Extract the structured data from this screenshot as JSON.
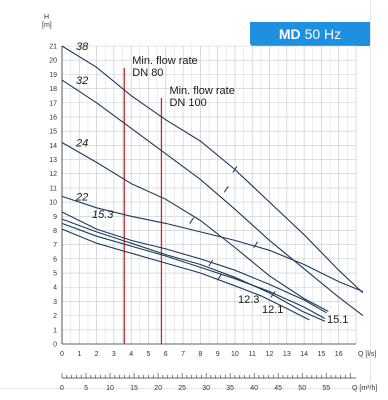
{
  "header": {
    "model": "MD",
    "frequency": "50 Hz",
    "color": "#1f8fe0"
  },
  "chart_data": {
    "type": "line",
    "ylabel": "H",
    "yunit": "[m]",
    "ylim": [
      0,
      21
    ],
    "yticks": [
      "0",
      "1",
      "2",
      "3",
      "4",
      "5",
      "6",
      "7",
      "8",
      "9",
      "10",
      "11",
      "12",
      "13",
      "14",
      "15",
      "16",
      "17",
      "18",
      "19",
      "20",
      "21"
    ],
    "x1_unit": "Q [l/s]",
    "x1lim": [
      0,
      17
    ],
    "x1ticks": [
      "0",
      "1",
      "2",
      "3",
      "4",
      "5",
      "6",
      "7",
      "8",
      "9",
      "10",
      "11",
      "12",
      "13",
      "14",
      "15",
      "16"
    ],
    "x2_unit": "Q [m³/h]",
    "x2ticks": [
      "0",
      "5",
      "10",
      "15",
      "20",
      "25",
      "30",
      "35",
      "40",
      "45",
      "50",
      "55"
    ],
    "grid": true,
    "colors": {
      "curve": "#1a3a5c",
      "minflow": "#c0272d",
      "grid": "#c8ccd0"
    },
    "annotations": [
      {
        "text": "Min. flow rate",
        "sub": "DN 80",
        "q": 3.6
      },
      {
        "text": "Min. flow rate",
        "sub": "DN 100",
        "q": 5.75
      }
    ],
    "series": [
      {
        "name": "38",
        "label_pos": "start",
        "points": [
          [
            0,
            21
          ],
          [
            2,
            19.5
          ],
          [
            4,
            17.5
          ],
          [
            6,
            15.8
          ],
          [
            8,
            14.3
          ],
          [
            10,
            12.3
          ],
          [
            12,
            10
          ],
          [
            14,
            7.7
          ],
          [
            16,
            5.2
          ],
          [
            17.4,
            3.6
          ]
        ]
      },
      {
        "name": "32",
        "label_pos": "start",
        "points": [
          [
            0,
            18.6
          ],
          [
            2,
            17
          ],
          [
            4,
            15.2
          ],
          [
            6,
            13.4
          ],
          [
            8,
            11.6
          ],
          [
            10,
            9.5
          ],
          [
            12,
            7.3
          ],
          [
            14,
            5.3
          ],
          [
            16,
            3.3
          ],
          [
            17.4,
            2
          ]
        ]
      },
      {
        "name": "24",
        "label_pos": "start",
        "points": [
          [
            0,
            14.2
          ],
          [
            2,
            12.8
          ],
          [
            4,
            11.3
          ],
          [
            6,
            10.2
          ],
          [
            8,
            8.7
          ],
          [
            10,
            6.8
          ],
          [
            12,
            4.8
          ],
          [
            14,
            3.2
          ],
          [
            15.4,
            2.3
          ]
        ]
      },
      {
        "name": "22",
        "label_pos": "start",
        "points": [
          [
            0,
            10.4
          ],
          [
            2,
            9.6
          ],
          [
            4,
            9
          ],
          [
            6,
            8.5
          ],
          [
            8,
            7.9
          ],
          [
            10,
            7.3
          ],
          [
            12,
            6.6
          ],
          [
            14,
            5.6
          ],
          [
            16,
            4.4
          ],
          [
            17.4,
            3.7
          ]
        ]
      },
      {
        "name": "15.3",
        "label_pos": "start",
        "points": [
          [
            0,
            9.3
          ],
          [
            2,
            8.1
          ],
          [
            4,
            7.3
          ],
          [
            6,
            6.7
          ],
          [
            8,
            6
          ],
          [
            10,
            5.2
          ],
          [
            12,
            4.2
          ],
          [
            14,
            3.1
          ],
          [
            15.3,
            2.2
          ]
        ]
      },
      {
        "name": "15.1",
        "label_pos": "end",
        "points": [
          [
            0,
            8.5
          ],
          [
            2,
            7.6
          ],
          [
            4,
            6.9
          ],
          [
            6,
            6.2
          ],
          [
            8,
            5.4
          ],
          [
            10,
            4.6
          ],
          [
            12,
            3.7
          ],
          [
            14,
            2.6
          ],
          [
            15.2,
            1.8
          ]
        ]
      },
      {
        "name": "12.1",
        "label_pos": "end",
        "points": [
          [
            0,
            8.8
          ],
          [
            2,
            7.9
          ],
          [
            4,
            7.1
          ],
          [
            6,
            6.3
          ],
          [
            8,
            5.6
          ],
          [
            10,
            4.7
          ],
          [
            12,
            3.6
          ],
          [
            13.9,
            2.3
          ],
          [
            15.2,
            1.6
          ]
        ]
      },
      {
        "name": "12.3",
        "label_pos": "end",
        "points": [
          [
            0,
            8.1
          ],
          [
            2,
            7.1
          ],
          [
            4,
            6.4
          ],
          [
            6,
            5.7
          ],
          [
            8,
            5
          ],
          [
            10,
            4.1
          ],
          [
            11.5,
            3.4
          ],
          [
            13,
            2.5
          ],
          [
            14.3,
            1.7
          ]
        ]
      }
    ],
    "label_order_note": ""
  }
}
